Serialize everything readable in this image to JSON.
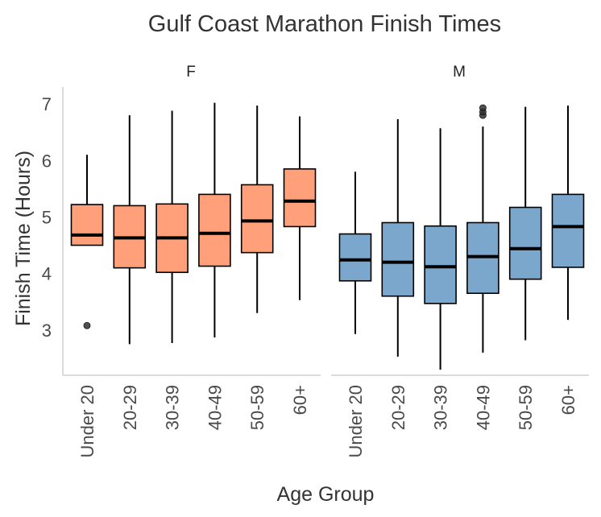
{
  "chart_data": {
    "type": "boxplot",
    "title": "Gulf Coast Marathon Finish Times",
    "xlabel": "Age Group",
    "ylabel": "Finish Time (Hours)",
    "ylim": [
      2.2,
      7.3
    ],
    "yticks": [
      3,
      4,
      5,
      6,
      7
    ],
    "categories": [
      "Under 20",
      "20-29",
      "30-39",
      "40-49",
      "50-59",
      "60+"
    ],
    "facets": [
      {
        "label": "F",
        "color": "#FFA07A",
        "boxes": [
          {
            "category": "Under 20",
            "whisker_low": 4.5,
            "q1": 4.5,
            "median": 4.68,
            "q3": 5.22,
            "whisker_high": 6.1,
            "outliers": [
              3.08
            ]
          },
          {
            "category": "20-29",
            "whisker_low": 2.75,
            "q1": 4.1,
            "median": 4.63,
            "q3": 5.2,
            "whisker_high": 6.8,
            "outliers": []
          },
          {
            "category": "30-39",
            "whisker_low": 2.77,
            "q1": 4.02,
            "median": 4.63,
            "q3": 5.23,
            "whisker_high": 6.88,
            "outliers": []
          },
          {
            "category": "40-49",
            "whisker_low": 2.87,
            "q1": 4.13,
            "median": 4.71,
            "q3": 5.4,
            "whisker_high": 7.02,
            "outliers": []
          },
          {
            "category": "50-59",
            "whisker_low": 3.3,
            "q1": 4.37,
            "median": 4.93,
            "q3": 5.57,
            "whisker_high": 6.97,
            "outliers": []
          },
          {
            "category": "60+",
            "whisker_low": 3.53,
            "q1": 4.83,
            "median": 5.28,
            "q3": 5.85,
            "whisker_high": 6.78,
            "outliers": []
          }
        ]
      },
      {
        "label": "M",
        "color": "#7BA7CC",
        "boxes": [
          {
            "category": "Under 20",
            "whisker_low": 2.93,
            "q1": 3.87,
            "median": 4.24,
            "q3": 4.7,
            "whisker_high": 5.8,
            "outliers": []
          },
          {
            "category": "20-29",
            "whisker_low": 2.53,
            "q1": 3.6,
            "median": 4.2,
            "q3": 4.9,
            "whisker_high": 6.73,
            "outliers": []
          },
          {
            "category": "30-39",
            "whisker_low": 2.3,
            "q1": 3.47,
            "median": 4.12,
            "q3": 4.84,
            "whisker_high": 6.57,
            "outliers": []
          },
          {
            "category": "40-49",
            "whisker_low": 2.6,
            "q1": 3.65,
            "median": 4.3,
            "q3": 4.9,
            "whisker_high": 6.6,
            "outliers": [
              6.8,
              6.86,
              6.93
            ]
          },
          {
            "category": "50-59",
            "whisker_low": 2.82,
            "q1": 3.9,
            "median": 4.44,
            "q3": 5.17,
            "whisker_high": 6.95,
            "outliers": []
          },
          {
            "category": "60+",
            "whisker_low": 3.18,
            "q1": 4.11,
            "median": 4.83,
            "q3": 5.4,
            "whisker_high": 6.97,
            "outliers": []
          }
        ]
      }
    ]
  }
}
